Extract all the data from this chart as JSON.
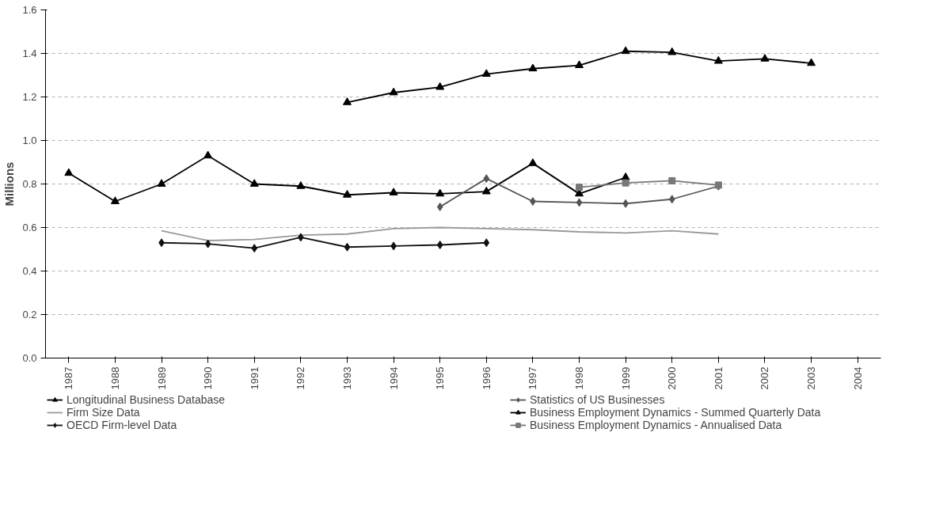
{
  "chart_data": {
    "type": "line",
    "ylabel": "Millions",
    "categories": [
      "1987",
      "1988",
      "1989",
      "1990",
      "1991",
      "1992",
      "1993",
      "1994",
      "1995",
      "1996",
      "1997",
      "1998",
      "1999",
      "2000",
      "2001",
      "2002",
      "2003",
      "2004"
    ],
    "ylim": [
      0,
      1.6
    ],
    "yticks": [
      {
        "value": 0,
        "label": "0.0"
      },
      {
        "value": 0.2,
        "label": "0.2"
      },
      {
        "value": 0.4,
        "label": "0.4"
      },
      {
        "value": 0.6,
        "label": "0.6"
      },
      {
        "value": 0.8,
        "label": "0.8"
      },
      {
        "value": 1.0,
        "label": "1.0"
      },
      {
        "value": 1.2,
        "label": "1.2"
      },
      {
        "value": 1.4,
        "label": "1.4"
      },
      {
        "value": 1.6,
        "label": "1.6"
      }
    ],
    "grid": "y",
    "legend": "bottom",
    "series": [
      {
        "name": "Longitudinal Business Database",
        "color": "#000000",
        "marker": "triangle",
        "values": [
          0.85,
          0.72,
          0.8,
          0.93,
          0.8,
          0.79,
          0.75,
          0.76,
          0.755,
          0.765,
          0.895,
          0.755,
          0.83,
          null,
          null,
          null,
          null,
          null
        ]
      },
      {
        "name": "Firm Size Data",
        "color": "#999999",
        "marker": "none",
        "values": [
          null,
          null,
          0.585,
          0.54,
          0.545,
          0.565,
          0.57,
          0.595,
          0.6,
          0.595,
          0.59,
          0.58,
          0.575,
          0.585,
          0.57,
          null,
          null,
          null
        ]
      },
      {
        "name": "OECD Firm-level Data",
        "color": "#111111",
        "marker": "diamond",
        "values": [
          null,
          null,
          0.53,
          0.525,
          0.505,
          0.555,
          0.51,
          0.515,
          0.52,
          0.53,
          null,
          null,
          null,
          null,
          null,
          null,
          null,
          null
        ]
      },
      {
        "name": "Statistics of US Businesses",
        "color": "#555555",
        "marker": "diamond",
        "values": [
          null,
          null,
          null,
          null,
          null,
          null,
          null,
          null,
          0.695,
          0.825,
          0.72,
          0.715,
          0.71,
          0.73,
          0.79,
          null,
          null,
          null
        ]
      },
      {
        "name": "Business Employment Dynamics - Summed Quarterly Data",
        "color": "#000000",
        "marker": "triangle",
        "values": [
          null,
          null,
          null,
          null,
          null,
          null,
          1.175,
          1.22,
          1.245,
          1.305,
          1.33,
          1.345,
          1.41,
          1.405,
          1.365,
          1.375,
          1.355,
          null
        ]
      },
      {
        "name": "Business Employment Dynamics - Annualised Data",
        "color": "#777777",
        "marker": "square",
        "values": [
          null,
          null,
          null,
          null,
          null,
          null,
          null,
          null,
          null,
          null,
          null,
          0.785,
          0.805,
          0.815,
          0.795,
          null,
          null,
          null
        ]
      }
    ]
  }
}
